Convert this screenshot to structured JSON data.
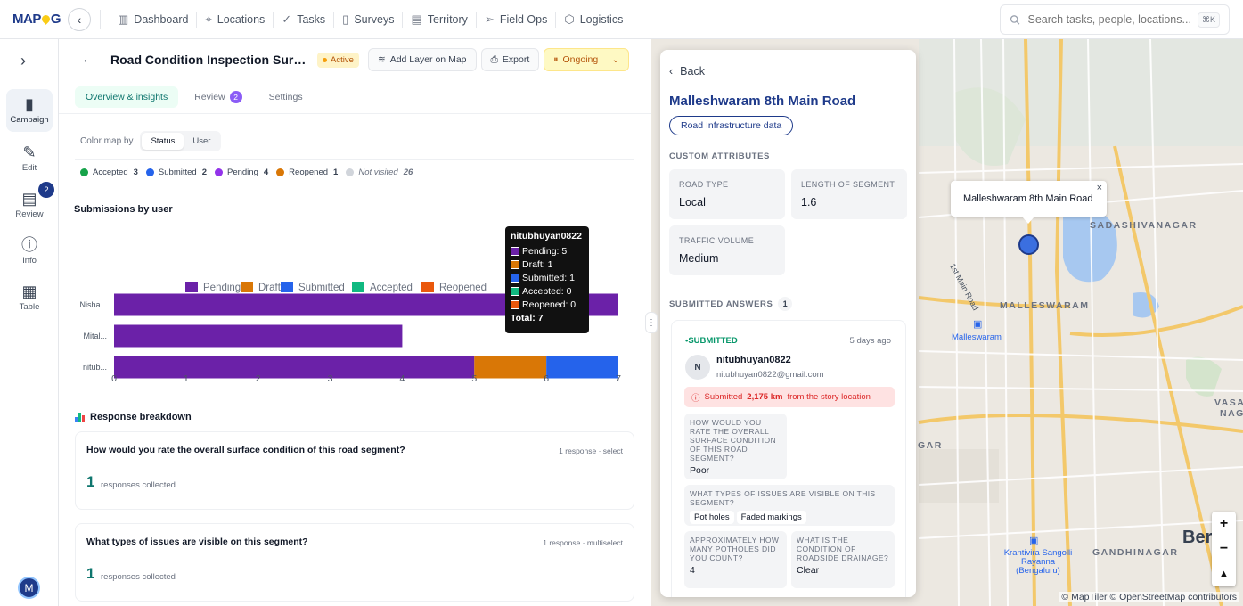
{
  "brand": {
    "logo_text": "MAP",
    "logo_suffix": "G"
  },
  "nav": [
    {
      "label": "Dashboard",
      "icon": "chart-bar-icon"
    },
    {
      "label": "Locations",
      "icon": "map-pin-icon"
    },
    {
      "label": "Tasks",
      "icon": "check-icon"
    },
    {
      "label": "Surveys",
      "icon": "clipboard-icon"
    },
    {
      "label": "Territory",
      "icon": "map-icon"
    },
    {
      "label": "Field Ops",
      "icon": "send-icon"
    },
    {
      "label": "Logistics",
      "icon": "box-icon"
    }
  ],
  "search": {
    "placeholder": "Search tasks, people, locations...",
    "shortcut": "⌘K"
  },
  "sidebar": {
    "items": [
      {
        "label": "Campaign",
        "icon": "clipboard-icon",
        "active": true
      },
      {
        "label": "Edit",
        "icon": "edit-icon"
      },
      {
        "label": "Review",
        "icon": "document-icon",
        "badge": "2"
      },
      {
        "label": "Info",
        "icon": "info-icon"
      },
      {
        "label": "Table",
        "icon": "grid-icon"
      }
    ],
    "avatar": "M"
  },
  "header": {
    "title": "Road Condition Inspection Surve...",
    "status": "Active",
    "add_layer": "Add Layer on Map",
    "export": "Export",
    "state": "Ongoing"
  },
  "tabs": [
    {
      "label": "Overview & insights",
      "active": true
    },
    {
      "label": "Review",
      "badge": "2"
    },
    {
      "label": "Settings"
    }
  ],
  "color_by": {
    "label": "Color map by",
    "options": [
      "Status",
      "User"
    ],
    "selected": "Status"
  },
  "status_legend": [
    {
      "label": "Accepted",
      "count": "3",
      "color": "#16a34a"
    },
    {
      "label": "Submitted",
      "count": "2",
      "color": "#2563eb"
    },
    {
      "label": "Pending",
      "count": "4",
      "color": "#9333ea"
    },
    {
      "label": "Reopened",
      "count": "1",
      "color": "#d97706"
    },
    {
      "label": "Not visited",
      "count": "26",
      "color": "#d1d5db"
    }
  ],
  "submissions_title": "Submissions by user",
  "chart_data": {
    "type": "bar",
    "orientation": "horizontal",
    "stacked": true,
    "categories": [
      "Nisha...",
      "Mital...",
      "nitub..."
    ],
    "series": [
      {
        "name": "Pending",
        "color": "#6b21a8",
        "values": [
          7,
          4,
          5
        ]
      },
      {
        "name": "Draft",
        "color": "#d97706",
        "values": [
          0,
          0,
          1
        ]
      },
      {
        "name": "Submitted",
        "color": "#2563eb",
        "values": [
          0,
          0,
          1
        ]
      },
      {
        "name": "Accepted",
        "color": "#10b981",
        "values": [
          0,
          0,
          0
        ]
      },
      {
        "name": "Reopened",
        "color": "#ea580c",
        "values": [
          0,
          0,
          0
        ]
      }
    ],
    "xlim": [
      0,
      7
    ],
    "xticks": [
      0,
      1,
      2,
      3,
      4,
      5,
      6,
      7
    ],
    "legend": "top",
    "grid": false
  },
  "tooltip": {
    "title": "nitubhuyan0822",
    "rows": [
      {
        "label": "Pending: 5",
        "color": "#6b21a8"
      },
      {
        "label": "Draft: 1",
        "color": "#d97706"
      },
      {
        "label": "Submitted: 1",
        "color": "#2563eb"
      },
      {
        "label": "Accepted: 0",
        "color": "#10b981"
      },
      {
        "label": "Reopened: 0",
        "color": "#ea580c"
      }
    ],
    "total": "Total: 7"
  },
  "breakdown": {
    "title": "Response breakdown",
    "questions": [
      {
        "q": "How would you rate the overall surface condition of this road segment?",
        "meta": "1 response · select",
        "count": "1",
        "label": "responses collected"
      },
      {
        "q": "What types of issues are visible on this segment?",
        "meta": "1 response · multiselect",
        "count": "1",
        "label": "responses collected"
      }
    ]
  },
  "panel": {
    "back": "Back",
    "title": "Malleshwaram 8th Main Road",
    "tag": "Road Infrastructure data",
    "custom_caption": "CUSTOM ATTRIBUTES",
    "attributes": [
      {
        "k": "ROAD TYPE",
        "v": "Local"
      },
      {
        "k": "LENGTH OF SEGMENT",
        "v": "1.6"
      },
      {
        "k": "TRAFFIC VOLUME",
        "v": "Medium"
      }
    ],
    "answers_caption": "SUBMITTED ANSWERS",
    "answers_count": "1",
    "answer": {
      "status": "SUBMITTED",
      "ago": "5 days ago",
      "avatar": "N",
      "user": "nitubhuyan0822",
      "email": "nitubhuyan0822@gmail.com",
      "warn_pre": "Submitted",
      "warn_dist": "2,175 km",
      "warn_post": "from the story location",
      "qa": [
        {
          "q": "HOW WOULD YOU RATE THE OVERALL SURFACE CONDITION OF THIS ROAD SEGMENT?",
          "a": "Poor"
        },
        {
          "q": "WHAT TYPES OF ISSUES ARE VISIBLE ON THIS SEGMENT?",
          "chips": [
            "Pot holes",
            "Faded markings"
          ]
        },
        {
          "q": "APPROXIMATELY HOW MANY POTHOLES DID YOU COUNT?",
          "a": "4"
        },
        {
          "q": "WHAT IS THE CONDITION OF ROADSIDE DRAINAGE?",
          "a": "Clear"
        }
      ]
    }
  },
  "map": {
    "popup": "Malleshwaram 8th Main Road",
    "labels": [
      {
        "text": "SADASHIVANAGAR",
        "name": "sadashivanagar"
      },
      {
        "text": "MALLESWARAM",
        "name": "malleswaram"
      },
      {
        "text": "GANDHINAGAR",
        "name": "gandhinagar"
      },
      {
        "text": "VASA",
        "name": "vasa"
      },
      {
        "text": "NAG",
        "name": "nag"
      },
      {
        "text": "GAR",
        "name": "gar"
      }
    ],
    "station1": "Malleswaram",
    "station2": "Krantivira Sangolli Rayanna (Bengaluru)",
    "road": "1st Main Road",
    "city": "Ber  al",
    "attribution": "© MapTiler © OpenStreetMap contributors",
    "zoom_in": "+",
    "zoom_out": "−",
    "compass": "▲"
  }
}
